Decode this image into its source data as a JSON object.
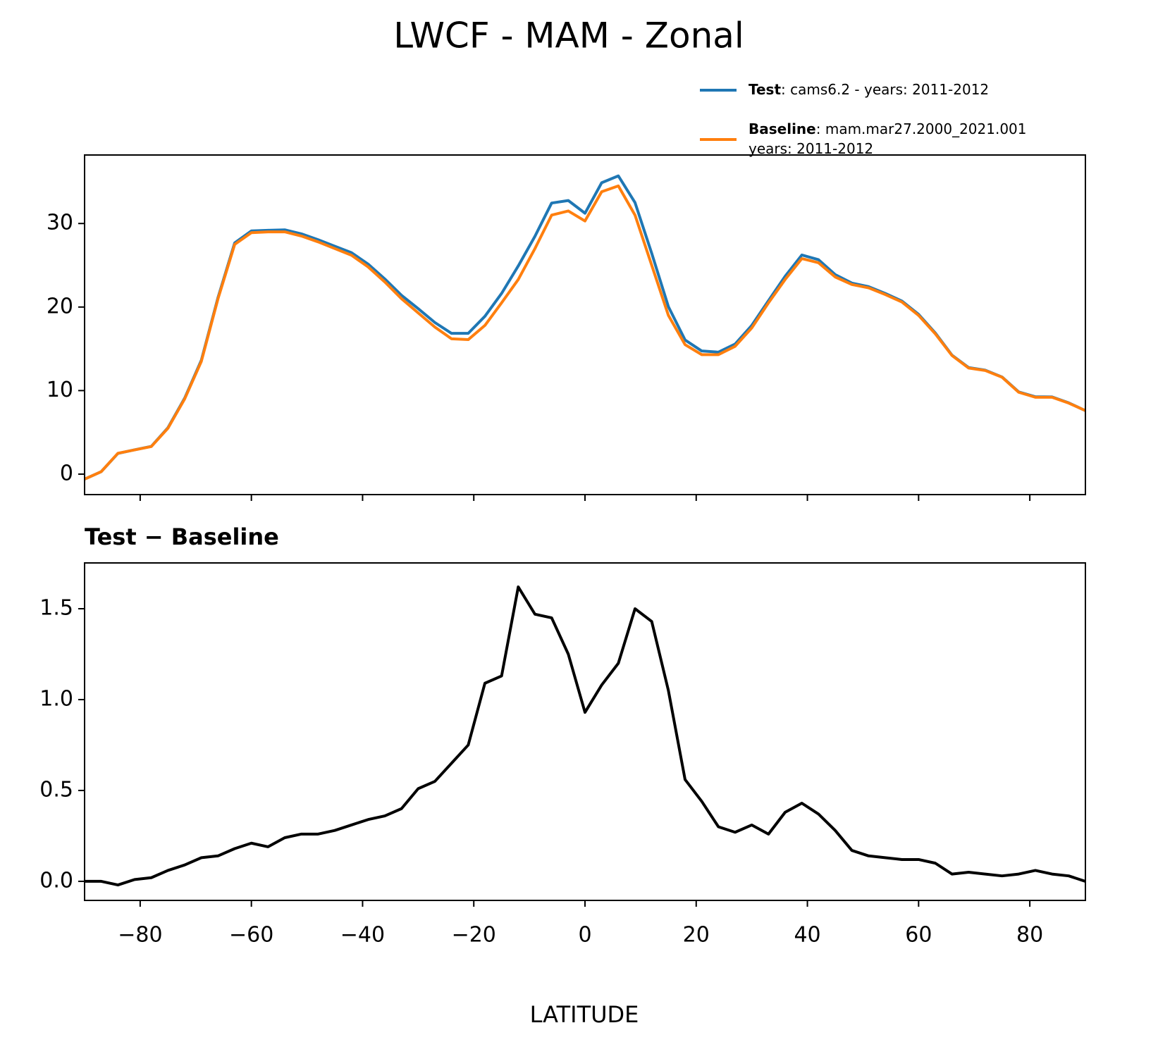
{
  "chart_data": [
    {
      "type": "line",
      "title": "LWCF - MAM - Zonal",
      "x": [
        -90,
        -87,
        -84,
        -81,
        -78,
        -75,
        -72,
        -69,
        -66,
        -63,
        -60,
        -57,
        -54,
        -51,
        -48,
        -45,
        -42,
        -39,
        -36,
        -33,
        -30,
        -27,
        -24,
        -21,
        -18,
        -15,
        -12,
        -9,
        -6,
        -3,
        0,
        3,
        6,
        9,
        12,
        15,
        18,
        21,
        24,
        27,
        30,
        33,
        36,
        39,
        42,
        45,
        48,
        51,
        54,
        57,
        60,
        63,
        66,
        69,
        72,
        75,
        78,
        81,
        84,
        87,
        90
      ],
      "series": [
        {
          "name": "Test",
          "description": [
            ": cams6.2 - years: 2011-2012"
          ],
          "color": "#1f77b4",
          "values": [
            -0.6,
            0.3,
            2.48,
            2.91,
            3.32,
            5.56,
            9.09,
            13.63,
            21.14,
            27.68,
            29.11,
            29.19,
            29.24,
            28.76,
            28.06,
            27.28,
            26.51,
            25.14,
            23.36,
            21.4,
            19.81,
            18.15,
            16.85,
            16.85,
            18.89,
            21.63,
            24.92,
            28.47,
            32.45,
            32.75,
            31.23,
            34.88,
            35.7,
            32.5,
            26.43,
            20.05,
            16.06,
            14.74,
            14.6,
            15.57,
            17.81,
            20.76,
            23.68,
            26.23,
            25.67,
            23.88,
            22.87,
            22.44,
            21.63,
            20.72,
            19.12,
            16.9,
            14.24,
            12.75,
            12.44,
            11.63,
            9.84,
            9.26,
            9.24,
            8.53,
            7.6
          ]
        },
        {
          "name": "Baseline",
          "description": [
            ": mam.mar27.2000_2021.001",
            "years: 2011-2012"
          ],
          "color": "#ff7f0e",
          "values": [
            -0.6,
            0.3,
            2.5,
            2.9,
            3.3,
            5.5,
            9,
            13.5,
            21,
            27.5,
            28.9,
            29,
            29,
            28.5,
            27.8,
            27,
            26.2,
            24.8,
            23,
            21,
            19.3,
            17.6,
            16.2,
            16.1,
            17.8,
            20.5,
            23.3,
            27,
            31,
            31.5,
            30.3,
            33.8,
            34.5,
            31,
            25,
            19,
            15.5,
            14.3,
            14.3,
            15.3,
            17.5,
            20.5,
            23.3,
            25.8,
            25.3,
            23.6,
            22.7,
            22.3,
            21.5,
            20.6,
            19,
            16.8,
            14.2,
            12.7,
            12.4,
            11.6,
            9.8,
            9.2,
            9.2,
            8.5,
            7.6
          ]
        }
      ],
      "xlim": [
        -90,
        90
      ],
      "xticks": [
        -80,
        -60,
        -40,
        -20,
        0,
        20,
        40,
        60,
        80
      ],
      "ylim": [
        -2.45,
        38.2
      ],
      "yticks": [
        0,
        10,
        20,
        30
      ],
      "legend": "upper right"
    },
    {
      "type": "line",
      "title": "Test − Baseline",
      "x_label": "LATITUDE",
      "x": [
        -90,
        -87,
        -84,
        -81,
        -78,
        -75,
        -72,
        -69,
        -66,
        -63,
        -60,
        -57,
        -54,
        -51,
        -48,
        -45,
        -42,
        -39,
        -36,
        -33,
        -30,
        -27,
        -24,
        -21,
        -18,
        -15,
        -12,
        -9,
        -6,
        -3,
        0,
        3,
        6,
        9,
        12,
        15,
        18,
        21,
        24,
        27,
        30,
        33,
        36,
        39,
        42,
        45,
        48,
        51,
        54,
        57,
        60,
        63,
        66,
        69,
        72,
        75,
        78,
        81,
        84,
        87,
        90
      ],
      "series": [
        {
          "color": "#000000",
          "values": [
            0,
            0,
            -0.02,
            0.01,
            0.02,
            0.06,
            0.09,
            0.13,
            0.14,
            0.18,
            0.21,
            0.19,
            0.24,
            0.26,
            0.26,
            0.28,
            0.31,
            0.34,
            0.36,
            0.4,
            0.51,
            0.55,
            0.65,
            0.75,
            1.09,
            1.13,
            1.62,
            1.47,
            1.45,
            1.25,
            0.93,
            1.08,
            1.2,
            1.5,
            1.43,
            1.05,
            0.56,
            0.44,
            0.3,
            0.27,
            0.31,
            0.26,
            0.38,
            0.43,
            0.37,
            0.28,
            0.17,
            0.14,
            0.13,
            0.12,
            0.12,
            0.1,
            0.04,
            0.05,
            0.04,
            0.03,
            0.04,
            0.06,
            0.04,
            0.03,
            0
          ]
        }
      ],
      "xlim": [
        -90,
        90
      ],
      "xticks": [
        {
          "value": -80,
          "label": "−80"
        },
        {
          "value": -60,
          "label": "−60"
        },
        {
          "value": -40,
          "label": "−40"
        },
        {
          "value": -20,
          "label": "−20"
        },
        0,
        20,
        40,
        60,
        80
      ],
      "ylim": [
        -0.105,
        1.752
      ],
      "yticks": [
        {
          "value": 0,
          "label": "0.0"
        },
        0.5,
        {
          "value": 1,
          "label": "1.0"
        },
        1.5
      ]
    }
  ]
}
